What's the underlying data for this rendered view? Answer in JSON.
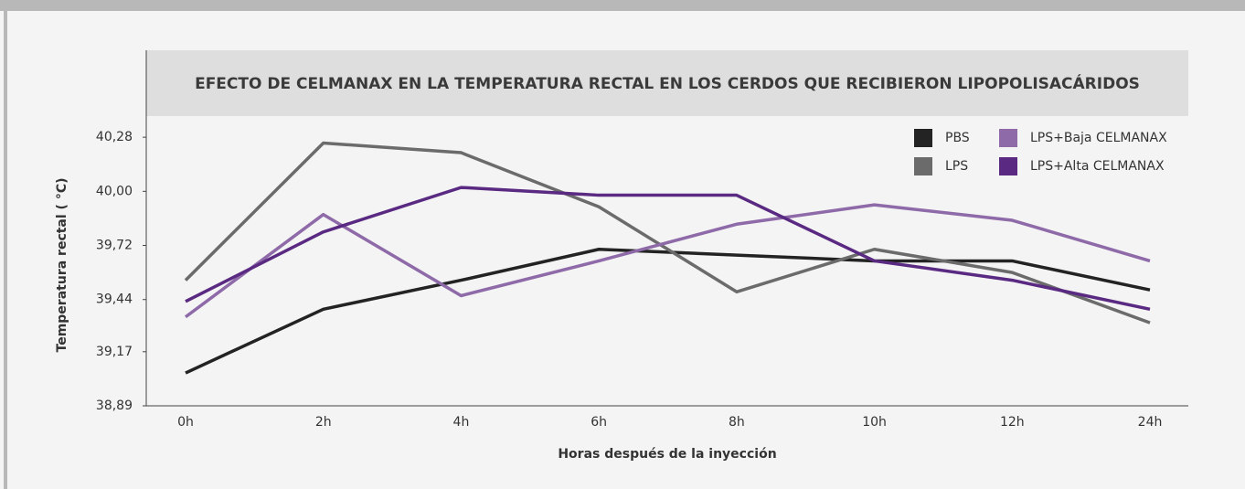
{
  "chart_data": {
    "type": "line",
    "title": "EFECTO DE CELMANAX EN LA TEMPERATURA RECTAL EN LOS CERDOS QUE RECIBIERON LIPOPOLISACÁRIDOS",
    "x_label": "Horas después de la inyección",
    "y_label": "Temperatura rectal ( °C)",
    "categories": [
      "0h",
      "2h",
      "4h",
      "6h",
      "8h",
      "10h",
      "12h",
      "24h"
    ],
    "series": [
      {
        "name": "PBS",
        "color": "#232323",
        "values": [
          39.06,
          39.39,
          39.54,
          39.7,
          39.67,
          39.64,
          39.64,
          39.49
        ]
      },
      {
        "name": "LPS",
        "color": "#6b6b6b",
        "values": [
          39.54,
          40.25,
          40.2,
          39.92,
          39.48,
          39.7,
          39.58,
          39.32
        ]
      },
      {
        "name": "LPS+Baja CELMANAX",
        "color": "#8e6aa8",
        "values": [
          39.35,
          39.88,
          39.46,
          39.64,
          39.83,
          39.93,
          39.85,
          39.64
        ]
      },
      {
        "name": "LPS+Alta CELMANAX",
        "color": "#5a2a82",
        "values": [
          39.43,
          39.79,
          40.02,
          39.98,
          39.98,
          39.64,
          39.54,
          39.39
        ]
      }
    ],
    "ylim": [
      38.89,
      40.73
    ],
    "yticks": [
      {
        "value": 38.89,
        "label": "38,89"
      },
      {
        "value": 39.17,
        "label": "39,17"
      },
      {
        "value": 39.44,
        "label": "39,44"
      },
      {
        "value": 39.72,
        "label": "39,72"
      },
      {
        "value": 40.0,
        "label": "40,00"
      },
      {
        "value": 40.28,
        "label": "40,28"
      }
    ],
    "legend": "upper right"
  }
}
